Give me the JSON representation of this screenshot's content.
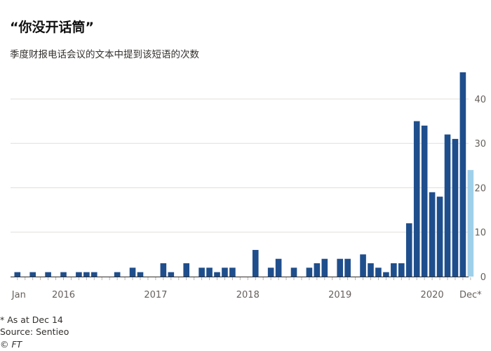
{
  "title": "“你没开话筒”",
  "subtitle": "季度财报电话会议的文本中提到该短语的次数",
  "footnote": "* As at Dec 14",
  "source": "Source: Sentieo",
  "copyright": "© FT",
  "colors": {
    "bar": "#1f4e8c",
    "bar_partial": "#9fd0ea",
    "grid": "#e2dfdb",
    "axis": "#33302e"
  },
  "chart_data": {
    "type": "bar",
    "values": [
      1,
      0,
      1,
      0,
      1,
      0,
      1,
      0,
      1,
      1,
      1,
      0,
      0,
      1,
      0,
      2,
      1,
      0,
      0,
      3,
      1,
      0,
      3,
      0,
      2,
      2,
      1,
      2,
      2,
      0,
      0,
      6,
      0,
      2,
      4,
      0,
      2,
      0,
      2,
      3,
      4,
      0,
      4,
      4,
      0,
      5,
      3,
      2,
      1,
      3,
      3,
      12,
      35,
      34,
      19,
      18,
      32,
      31,
      46,
      24
    ],
    "partial_index": 59,
    "ylim": [
      0,
      46
    ],
    "yticks": [
      0,
      10,
      20,
      30,
      40
    ],
    "xtick_labels": [
      {
        "label": "Jan",
        "index": 0
      },
      {
        "label": "2016",
        "index": 6
      },
      {
        "label": "2017",
        "index": 18
      },
      {
        "label": "2018",
        "index": 30
      },
      {
        "label": "2019",
        "index": 42
      },
      {
        "label": "2020",
        "index": 54
      },
      {
        "label": "Dec*",
        "index": 59
      }
    ],
    "grid": true,
    "xlabel": "",
    "ylabel": ""
  }
}
